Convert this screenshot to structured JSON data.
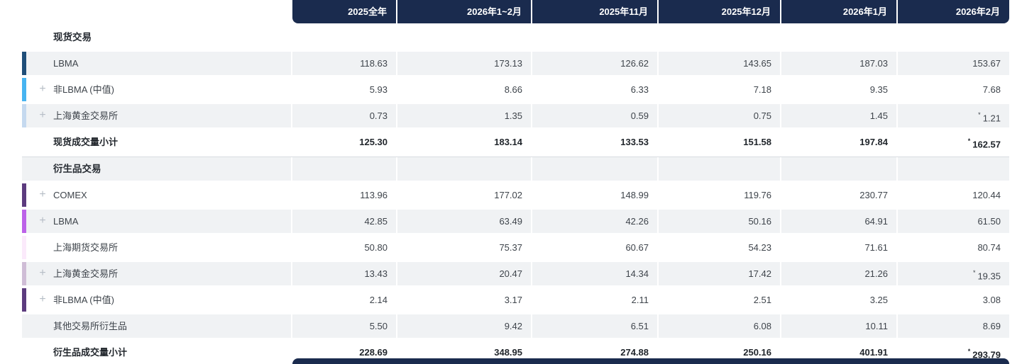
{
  "colors": {
    "header_bg": "#1A2B4E",
    "shaded_row_bg": "#F0F2F4",
    "spot_lbma_bar": "#1F4E79",
    "spot_nonlbma_bar": "#47B4F1",
    "spot_sge_bar": "#C5D9EF",
    "deriv_comex_bar": "#5C3B7E",
    "deriv_lbma_bar": "#BC62E8",
    "deriv_shfe_bar": "#FBEAFB",
    "deriv_sge_bar": "#CFBDD6",
    "deriv_nonlbma_bar": "#5C3B7E"
  },
  "table": {
    "columns": [
      "2025全年",
      "2026年1~2月",
      "2025年11月",
      "2025年12月",
      "2026年1月",
      "2026年2月"
    ],
    "rows": [
      {
        "type": "section",
        "label": "现货交易",
        "shaded": false
      },
      {
        "type": "data",
        "label": "LBMA",
        "shaded": true,
        "bar": "#1F4E79",
        "plus": false,
        "values": [
          "118.63",
          "173.13",
          "126.62",
          "143.65",
          "187.03",
          "153.67"
        ]
      },
      {
        "type": "data",
        "label": "非LBMA (中值)",
        "shaded": false,
        "bar": "#47B4F1",
        "plus": true,
        "values": [
          "5.93",
          "8.66",
          "6.33",
          "7.18",
          "9.35",
          "7.68"
        ]
      },
      {
        "type": "data",
        "label": "上海黄金交易所",
        "shaded": true,
        "bar": "#C5D9EF",
        "plus": true,
        "values": [
          "0.73",
          "1.35",
          "0.59",
          "0.75",
          "1.45",
          "*1.21"
        ]
      },
      {
        "type": "subtotal",
        "label": "现货成交量小计",
        "shaded": false,
        "values": [
          "125.30",
          "183.14",
          "133.53",
          "151.58",
          "197.84",
          "*162.57"
        ]
      },
      {
        "type": "section",
        "label": "衍生品交易",
        "shaded": true,
        "divider": true
      },
      {
        "type": "data",
        "label": "COMEX",
        "shaded": false,
        "bar": "#5C3B7E",
        "plus": true,
        "values": [
          "113.96",
          "177.02",
          "148.99",
          "119.76",
          "230.77",
          "120.44"
        ]
      },
      {
        "type": "data",
        "label": "LBMA",
        "shaded": true,
        "bar": "#BC62E8",
        "plus": true,
        "values": [
          "42.85",
          "63.49",
          "42.26",
          "50.16",
          "64.91",
          "61.50"
        ]
      },
      {
        "type": "data",
        "label": "上海期货交易所",
        "shaded": false,
        "bar": "#FBEAFB",
        "plus": false,
        "values": [
          "50.80",
          "75.37",
          "60.67",
          "54.23",
          "71.61",
          "80.74"
        ]
      },
      {
        "type": "data",
        "label": "上海黄金交易所",
        "shaded": true,
        "bar": "#CFBDD6",
        "plus": true,
        "values": [
          "13.43",
          "20.47",
          "14.34",
          "17.42",
          "21.26",
          "*19.35"
        ]
      },
      {
        "type": "data",
        "label": "非LBMA (中值)",
        "shaded": false,
        "bar": "#5C3B7E",
        "plus": true,
        "values": [
          "2.14",
          "3.17",
          "2.11",
          "2.51",
          "3.25",
          "3.08"
        ]
      },
      {
        "type": "data",
        "label": "其他交易所衍生品",
        "shaded": true,
        "bar": null,
        "plus": false,
        "values": [
          "5.50",
          "9.42",
          "6.51",
          "6.08",
          "10.11",
          "8.69"
        ]
      },
      {
        "type": "subtotal",
        "label": "衍生品成交量小计",
        "shaded": false,
        "values": [
          "228.69",
          "348.95",
          "274.88",
          "250.16",
          "401.91",
          "*293.79"
        ]
      }
    ]
  }
}
